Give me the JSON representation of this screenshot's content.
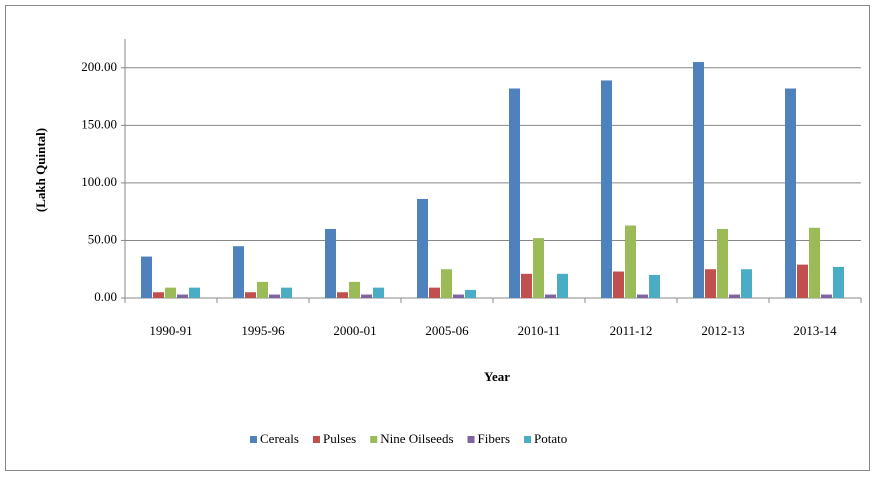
{
  "chart_data": {
    "type": "bar",
    "x_label": "Year",
    "y_label": "(Lakh Quintal)",
    "categories": [
      "1990-91",
      "1995-96",
      "2000-01",
      "2005-06",
      "2010-11",
      "2011-12",
      "2012-13",
      "2013-14"
    ],
    "series": [
      {
        "name": "Cereals",
        "color": "#4f81bd",
        "values": [
          36,
          45,
          60,
          86,
          182,
          189,
          205,
          182
        ]
      },
      {
        "name": "Pulses",
        "color": "#c0504d",
        "values": [
          5,
          5,
          5,
          9,
          21,
          23,
          25,
          29
        ]
      },
      {
        "name": "Nine Oilseeds",
        "color": "#9bbb59",
        "values": [
          9,
          14,
          14,
          25,
          52,
          63,
          60,
          61
        ]
      },
      {
        "name": "Fibers",
        "color": "#8064a2",
        "values": [
          3,
          3,
          3,
          3,
          3,
          3,
          3,
          3
        ]
      },
      {
        "name": "Potato",
        "color": "#4bacc6",
        "values": [
          9,
          9,
          9,
          7,
          21,
          20,
          25,
          27
        ]
      }
    ],
    "ylim": [
      0,
      225
    ],
    "yticks": [
      {
        "value": 0,
        "label": "0.00"
      },
      {
        "value": 50,
        "label": "50.00"
      },
      {
        "value": 100,
        "label": "100.00"
      },
      {
        "value": 150,
        "label": "150.00"
      },
      {
        "value": 200,
        "label": "200.00"
      }
    ],
    "grid": true,
    "legend": "bottom"
  }
}
